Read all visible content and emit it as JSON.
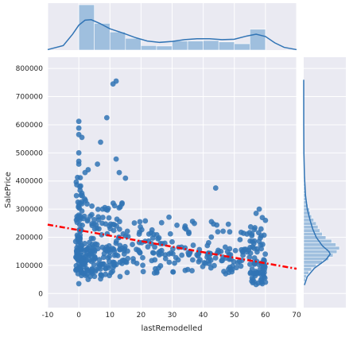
{
  "colors": {
    "panel_bg": "#eaeaf2",
    "grid": "#ffffff",
    "points": "#3174b5",
    "hist_fill": "#9fbfde",
    "kde_line": "#3174b5",
    "reg_line": "#ff0000"
  },
  "chart_data": [
    {
      "type": "scatter",
      "role": "joint",
      "xlabel": "lastRemodelled",
      "ylabel": "SalePrice",
      "xlim": [
        -10,
        70
      ],
      "ylim": [
        -50000,
        840000
      ],
      "xticks": [
        "-10",
        "0",
        "10",
        "20",
        "30",
        "40",
        "50",
        "60",
        "70"
      ],
      "yticks": [
        "0",
        "100000",
        "200000",
        "300000",
        "400000",
        "500000",
        "600000",
        "700000",
        "800000"
      ],
      "grid": true,
      "regression": {
        "style": "dash-dot",
        "x": [
          -10,
          70
        ],
        "y": [
          245000,
          88000
        ]
      },
      "clusters": [
        {
          "x0": -1,
          "x1": 1,
          "ymin": 60000,
          "ymax": 430000,
          "n": 90
        },
        {
          "x0": 1,
          "x1": 5,
          "ymin": 60000,
          "ymax": 360000,
          "n": 70
        },
        {
          "x0": 5,
          "x1": 10,
          "ymin": 60000,
          "ymax": 330000,
          "n": 60
        },
        {
          "x0": 10,
          "x1": 15,
          "ymin": 60000,
          "ymax": 330000,
          "n": 50
        },
        {
          "x0": 15,
          "x1": 25,
          "ymin": 60000,
          "ymax": 300000,
          "n": 45
        },
        {
          "x0": 25,
          "x1": 35,
          "ymin": 70000,
          "ymax": 280000,
          "n": 40
        },
        {
          "x0": 35,
          "x1": 45,
          "ymin": 70000,
          "ymax": 270000,
          "n": 45
        },
        {
          "x0": 45,
          "x1": 55,
          "ymin": 70000,
          "ymax": 250000,
          "n": 45
        },
        {
          "x0": 55,
          "x1": 60,
          "ymin": 35000,
          "ymax": 240000,
          "n": 75
        }
      ],
      "points": [
        [
          12,
          755000
        ],
        [
          11,
          745000
        ],
        [
          9,
          625000
        ],
        [
          0,
          612000
        ],
        [
          0,
          588000
        ],
        [
          0,
          565000
        ],
        [
          1,
          555000
        ],
        [
          7,
          538000
        ],
        [
          0,
          500000
        ],
        [
          12,
          478000
        ],
        [
          0,
          470000
        ],
        [
          0,
          460000
        ],
        [
          44,
          375000
        ],
        [
          6,
          460000
        ],
        [
          2,
          430000
        ],
        [
          15,
          410000
        ],
        [
          13,
          430000
        ],
        [
          3,
          440000
        ],
        [
          57,
          285000
        ],
        [
          58,
          300000
        ],
        [
          59,
          270000
        ],
        [
          60,
          260000
        ],
        [
          57,
          32000
        ],
        [
          59,
          35000
        ],
        [
          60,
          40000
        ],
        [
          0,
          35000
        ],
        [
          3,
          50000
        ],
        [
          7,
          52000
        ],
        [
          -1,
          185000
        ],
        [
          0,
          130000
        ]
      ]
    },
    {
      "type": "bar",
      "role": "marginal-x-histogram",
      "bins": [
        [
          0,
          5,
          1.0
        ],
        [
          5,
          10,
          0.59
        ],
        [
          10,
          15,
          0.4
        ],
        [
          15,
          20,
          0.26
        ],
        [
          20,
          25,
          0.1
        ],
        [
          25,
          30,
          0.09
        ],
        [
          30,
          35,
          0.2
        ],
        [
          35,
          40,
          0.2
        ],
        [
          40,
          45,
          0.21
        ],
        [
          45,
          50,
          0.18
        ],
        [
          50,
          55,
          0.14
        ],
        [
          55,
          60,
          0.46
        ]
      ],
      "kde": [
        [
          -10,
          0.01
        ],
        [
          -5,
          0.1
        ],
        [
          -2,
          0.35
        ],
        [
          0,
          0.55
        ],
        [
          2,
          0.66
        ],
        [
          4,
          0.67
        ],
        [
          7,
          0.58
        ],
        [
          10,
          0.47
        ],
        [
          14,
          0.38
        ],
        [
          18,
          0.28
        ],
        [
          22,
          0.2
        ],
        [
          26,
          0.17
        ],
        [
          30,
          0.19
        ],
        [
          34,
          0.23
        ],
        [
          38,
          0.25
        ],
        [
          42,
          0.25
        ],
        [
          46,
          0.23
        ],
        [
          50,
          0.24
        ],
        [
          54,
          0.31
        ],
        [
          57,
          0.35
        ],
        [
          60,
          0.3
        ],
        [
          63,
          0.16
        ],
        [
          66,
          0.06
        ],
        [
          70,
          0.01
        ]
      ]
    },
    {
      "type": "bar",
      "role": "marginal-y-histogram",
      "bin_width": 12500,
      "bins_start": 30000,
      "counts": [
        0.02,
        0.05,
        0.08,
        0.14,
        0.22,
        0.35,
        0.52,
        0.7,
        0.82,
        0.93,
        1.0,
        0.9,
        0.78,
        0.62,
        0.52,
        0.45,
        0.4,
        0.35,
        0.28,
        0.22,
        0.18,
        0.16,
        0.12,
        0.1,
        0.08,
        0.06,
        0.05,
        0.04,
        0.03,
        0.02,
        0.02,
        0.01,
        0.01,
        0.01,
        0.01
      ],
      "kde": [
        [
          30000,
          0.02
        ],
        [
          60000,
          0.1
        ],
        [
          90000,
          0.3
        ],
        [
          120000,
          0.62
        ],
        [
          140000,
          0.74
        ],
        [
          150000,
          0.7
        ],
        [
          170000,
          0.52
        ],
        [
          200000,
          0.35
        ],
        [
          230000,
          0.25
        ],
        [
          260000,
          0.18
        ],
        [
          300000,
          0.1
        ],
        [
          350000,
          0.05
        ],
        [
          420000,
          0.02
        ],
        [
          500000,
          0.005
        ],
        [
          600000,
          0.001
        ],
        [
          760000,
          0.0
        ]
      ]
    }
  ]
}
